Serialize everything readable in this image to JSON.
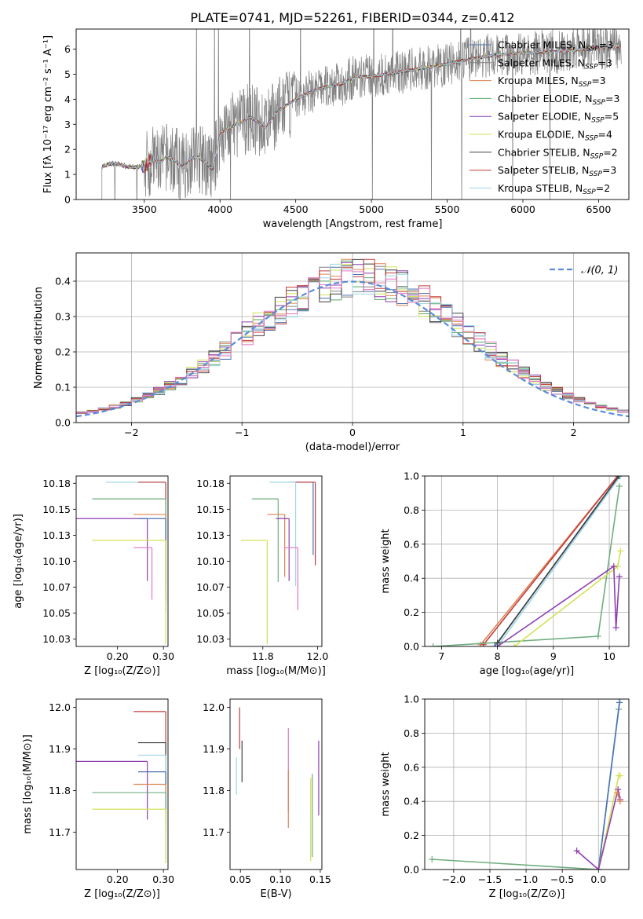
{
  "figure_title": "PLATE=0741, MJD=52261, FIBERID=0344, z=0.412",
  "series_colors": [
    "#4c72b0",
    "#808080",
    "#dd8452",
    "#55a868",
    "#8e3fb0",
    "#d4e157",
    "#404040",
    "#c03d3e",
    "#9ed6e6",
    "#e377c2",
    "#6fae7f"
  ],
  "chart_data": [
    {
      "id": "spectrum",
      "type": "line",
      "title": "PLATE=0741, MJD=52261, FIBERID=0344, z=0.412",
      "xlabel": "wavelength [Angstrom, rest frame]",
      "ylabel": "Flux [fλ 10⁻¹⁷ erg cm⁻² s⁻¹ A⁻¹]",
      "xlim": [
        3050,
        6700
      ],
      "ylim": [
        0,
        6.8
      ],
      "xticks": [
        3500,
        4000,
        4500,
        5000,
        5500,
        6000,
        6500
      ],
      "yticks": [
        0,
        1,
        2,
        3,
        4,
        5,
        6
      ],
      "legend_position": "right",
      "model_curve": {
        "x": [
          3220,
          3260,
          3300,
          3350,
          3400,
          3450,
          3500,
          3550,
          3600,
          3650,
          3700,
          3750,
          3800,
          3850,
          3900,
          3950,
          4000,
          4050,
          4100,
          4150,
          4200,
          4250,
          4300,
          4350,
          4400,
          4450,
          4500,
          4600,
          4700,
          4800,
          4900,
          5000,
          5100,
          5200,
          5300,
          5400,
          5500,
          5600,
          5700,
          5800,
          5900,
          6000,
          6100,
          6200,
          6300,
          6400,
          6500,
          6600
        ],
        "y": [
          1.3,
          1.4,
          1.45,
          1.38,
          1.3,
          1.28,
          1.35,
          1.6,
          1.5,
          1.7,
          1.55,
          1.3,
          1.6,
          1.7,
          1.5,
          1.2,
          2.6,
          2.8,
          3.0,
          3.1,
          3.3,
          3.1,
          2.9,
          3.3,
          3.6,
          3.8,
          4.0,
          4.3,
          4.5,
          4.6,
          4.9,
          4.9,
          5.0,
          5.1,
          5.2,
          5.3,
          5.4,
          5.55,
          5.65,
          5.75,
          5.8,
          5.85,
          5.85,
          5.9,
          5.95,
          6.0,
          6.05,
          6.1
        ]
      },
      "series": [
        {
          "name": "Chabrier MILES, N",
          "sub": "SSP",
          "suffix": "=3"
        },
        {
          "name": "Salpeter MILES, N",
          "sub": "SSP",
          "suffix": "=3"
        },
        {
          "name": "Kroupa MILES, N",
          "sub": "SSP",
          "suffix": "=3"
        },
        {
          "name": "Chabrier ELODIE, N",
          "sub": "SSP",
          "suffix": "=3"
        },
        {
          "name": "Salpeter ELODIE, N",
          "sub": "SSP",
          "suffix": "=5"
        },
        {
          "name": "Kroupa ELODIE, N",
          "sub": "SSP",
          "suffix": "=4"
        },
        {
          "name": "Chabrier STELIB, N",
          "sub": "SSP",
          "suffix": "=2"
        },
        {
          "name": "Salpeter STELIB, N",
          "sub": "SSP",
          "suffix": "=3"
        },
        {
          "name": "Kroupa STELIB, N",
          "sub": "SSP",
          "suffix": "=2"
        }
      ]
    },
    {
      "id": "residuals",
      "type": "histogram",
      "xlabel": "(data-model)/error",
      "ylabel": "Normed distribution",
      "xlim": [
        -2.5,
        2.5
      ],
      "ylim": [
        0,
        0.48
      ],
      "xticks": [
        -2,
        -1,
        0,
        1,
        2
      ],
      "yticks": [
        0.0,
        0.1,
        0.2,
        0.3,
        0.4
      ],
      "bin_width": 0.1,
      "legend": "𝒩(0, 1)",
      "legend_position": "top-right",
      "grid": true
    },
    {
      "id": "age-vs-Z",
      "type": "errorbar",
      "xlabel": "Z [log₁₀(Z/Z⊙)]",
      "ylabel": "age  [log₁₀(age/yr)]",
      "xlim": [
        0.11,
        0.31
      ],
      "ylim": [
        10.018,
        10.182
      ],
      "xticks": [
        0.2,
        0.3
      ],
      "yticks": [
        10.025,
        10.05,
        10.075,
        10.1,
        10.125,
        10.15,
        10.175
      ],
      "points": [
        {
          "x": 0.305,
          "y": 10.176,
          "xerr": 0.13,
          "yerr_lo": 0.07,
          "c": 8
        },
        {
          "x": 0.305,
          "y": 10.176,
          "xerr": 0.06,
          "yerr_lo": 0.1,
          "c": 7
        },
        {
          "x": 0.305,
          "y": 10.16,
          "xerr": 0.16,
          "yerr_lo": 0.1,
          "c": 10
        },
        {
          "x": 0.305,
          "y": 10.145,
          "xerr": 0.07,
          "yerr_lo": 0.08,
          "c": 2
        },
        {
          "x": 0.265,
          "y": 10.141,
          "xerr": 0.16,
          "yerr_lo": 0.06,
          "c": 4
        },
        {
          "x": 0.305,
          "y": 10.141,
          "xerr": 0.06,
          "yerr_lo": 0.09,
          "c": 0
        },
        {
          "x": 0.305,
          "y": 10.12,
          "xerr": 0.16,
          "yerr_lo": 0.1,
          "c": 5
        },
        {
          "x": 0.275,
          "y": 10.113,
          "xerr": 0.04,
          "yerr_lo": 0.05,
          "c": 9
        }
      ]
    },
    {
      "id": "age-vs-mass",
      "type": "errorbar",
      "xlabel": "mass [log₁₀(M/M⊙)]",
      "ylabel": "",
      "xlim": [
        11.6,
        12.02
      ],
      "ylim": [
        10.018,
        10.182
      ],
      "xticks": [
        11.75,
        12.0
      ],
      "yticks": [
        10.025,
        10.05,
        10.075,
        10.1,
        10.125,
        10.15,
        10.175
      ],
      "points": [
        {
          "x": 11.98,
          "y": 10.176,
          "xerr": 0.12,
          "yerr_lo": 0.07,
          "c": 0
        },
        {
          "x": 11.99,
          "y": 10.176,
          "xerr": 0.11,
          "yerr_lo": 0.08,
          "c": 7
        },
        {
          "x": 11.9,
          "y": 10.176,
          "xerr": 0.12,
          "yerr_lo": 0.1,
          "c": 8
        },
        {
          "x": 11.82,
          "y": 10.16,
          "xerr": 0.12,
          "yerr_lo": 0.08,
          "c": 10
        },
        {
          "x": 11.85,
          "y": 10.145,
          "xerr": 0.08,
          "yerr_lo": 0.06,
          "c": 2
        },
        {
          "x": 11.87,
          "y": 10.141,
          "xerr": 0.06,
          "yerr_lo": 0.06,
          "c": 4
        },
        {
          "x": 11.77,
          "y": 10.12,
          "xerr": 0.12,
          "yerr_lo": 0.1,
          "c": 5
        },
        {
          "x": 11.91,
          "y": 10.113,
          "xerr": 0.06,
          "yerr_lo": 0.06,
          "c": 9
        }
      ]
    },
    {
      "id": "weight-vs-age",
      "type": "line",
      "xlabel": "age  [log₁₀(age/yr)]",
      "ylabel": "mass weight",
      "xlim": [
        6.7,
        10.35
      ],
      "ylim": [
        0,
        1
      ],
      "xticks": [
        7,
        8,
        9,
        10
      ],
      "yticks": [
        0.0,
        0.2,
        0.4,
        0.6,
        0.8,
        1.0
      ],
      "grid": true,
      "series": [
        {
          "c": 2,
          "x": [
            7.7,
            10.15
          ],
          "y": [
            0.01,
            1.0
          ]
        },
        {
          "c": 7,
          "x": [
            7.75,
            10.15
          ],
          "y": [
            0.01,
            1.0
          ]
        },
        {
          "c": 0,
          "x": [
            7.95,
            10.18
          ],
          "y": [
            0.0,
            1.0
          ]
        },
        {
          "c": 8,
          "x": [
            8.0,
            10.2
          ],
          "y": [
            0.0,
            1.0
          ]
        },
        {
          "c": 10,
          "x": [
            6.85,
            9.8,
            10.18
          ],
          "y": [
            0.0,
            0.06,
            0.94
          ]
        },
        {
          "c": 5,
          "x": [
            8.3,
            10.15,
            10.2
          ],
          "y": [
            0.0,
            0.47,
            0.56
          ]
        },
        {
          "c": 4,
          "x": [
            8.0,
            10.08,
            10.12,
            10.18
          ],
          "y": [
            0.0,
            0.47,
            0.11,
            0.41
          ]
        },
        {
          "c": 6,
          "x": [
            8.0,
            10.17
          ],
          "y": [
            0.02,
            1.0
          ]
        }
      ]
    },
    {
      "id": "mass-vs-Z",
      "type": "errorbar",
      "xlabel": "Z [log₁₀(Z/Z⊙)]",
      "ylabel": "mass [log₁₀(M/M⊙)]",
      "xlim": [
        0.11,
        0.31
      ],
      "ylim": [
        11.61,
        12.02
      ],
      "xticks": [
        0.2,
        0.3
      ],
      "yticks": [
        11.7,
        11.8,
        11.9,
        12.0
      ],
      "points": [
        {
          "x": 0.305,
          "y": 11.99,
          "xerr": 0.07,
          "yerr_lo": 0.1,
          "c": 7
        },
        {
          "x": 0.305,
          "y": 11.915,
          "xerr": 0.06,
          "yerr_lo": 0.1,
          "c": 6
        },
        {
          "x": 0.305,
          "y": 11.885,
          "xerr": 0.06,
          "yerr_lo": 0.1,
          "c": 8
        },
        {
          "x": 0.265,
          "y": 11.87,
          "xerr": 0.16,
          "yerr_lo": 0.14,
          "c": 4
        },
        {
          "x": 0.305,
          "y": 11.845,
          "xerr": 0.06,
          "yerr_lo": 0.1,
          "c": 0
        },
        {
          "x": 0.305,
          "y": 11.815,
          "xerr": 0.07,
          "yerr_lo": 0.1,
          "c": 2
        },
        {
          "x": 0.305,
          "y": 11.795,
          "xerr": 0.16,
          "yerr_lo": 0.16,
          "c": 10
        },
        {
          "x": 0.305,
          "y": 11.755,
          "xerr": 0.16,
          "yerr_lo": 0.13,
          "c": 5
        }
      ]
    },
    {
      "id": "mass-vs-EBV",
      "type": "errorbar",
      "xlabel": "E(B-V)",
      "ylabel": "",
      "xlim": [
        0.037,
        0.152
      ],
      "ylim": [
        11.61,
        12.02
      ],
      "xticks": [
        0.05,
        0.1,
        0.15
      ],
      "yticks": [
        11.7,
        11.8,
        11.9,
        12.0
      ],
      "points": [
        {
          "x": 0.049,
          "y": 12.0,
          "yerr_lo": 0.1,
          "c": 7
        },
        {
          "x": 0.052,
          "y": 11.92,
          "yerr_lo": 0.1,
          "c": 6
        },
        {
          "x": 0.045,
          "y": 11.88,
          "yerr_lo": 0.09,
          "c": 8
        },
        {
          "x": 0.11,
          "y": 11.95,
          "yerr_lo": 0.2,
          "c": 9
        },
        {
          "x": 0.11,
          "y": 11.85,
          "yerr_lo": 0.14,
          "c": 2
        },
        {
          "x": 0.138,
          "y": 11.83,
          "yerr_lo": 0.2,
          "c": 5
        },
        {
          "x": 0.14,
          "y": 11.84,
          "yerr_lo": 0.2,
          "c": 10
        },
        {
          "x": 0.148,
          "y": 11.92,
          "yerr_lo": 0.18,
          "c": 4
        }
      ]
    },
    {
      "id": "weight-vs-Z",
      "type": "line",
      "xlabel": "Z [log₁₀(Z/Z⊙)]",
      "ylabel": "mass weight",
      "xlim": [
        -2.4,
        0.42
      ],
      "ylim": [
        0,
        1
      ],
      "xticks": [
        -2.0,
        -1.5,
        -1.0,
        -0.5,
        0.0
      ],
      "yticks": [
        0.0,
        0.2,
        0.4,
        0.6,
        0.8,
        1.0
      ],
      "grid": true,
      "series": [
        {
          "c": 10,
          "x": [
            -2.3,
            0.0,
            0.28
          ],
          "y": [
            0.06,
            0.0,
            0.94
          ]
        },
        {
          "c": 8,
          "x": [
            0.0,
            0.3
          ],
          "y": [
            0.0,
            1.0
          ]
        },
        {
          "c": 0,
          "x": [
            0.0,
            0.29
          ],
          "y": [
            0.0,
            0.98
          ]
        },
        {
          "c": 5,
          "x": [
            0.0,
            0.28,
            0.3
          ],
          "y": [
            0.0,
            0.55,
            0.55
          ]
        },
        {
          "c": 4,
          "x": [
            -0.3,
            0.0,
            0.27,
            0.3
          ],
          "y": [
            0.11,
            0.0,
            0.47,
            0.41
          ]
        },
        {
          "c": 2,
          "x": [
            0.26,
            0.3
          ],
          "y": [
            0.45,
            0.4
          ]
        }
      ]
    }
  ]
}
